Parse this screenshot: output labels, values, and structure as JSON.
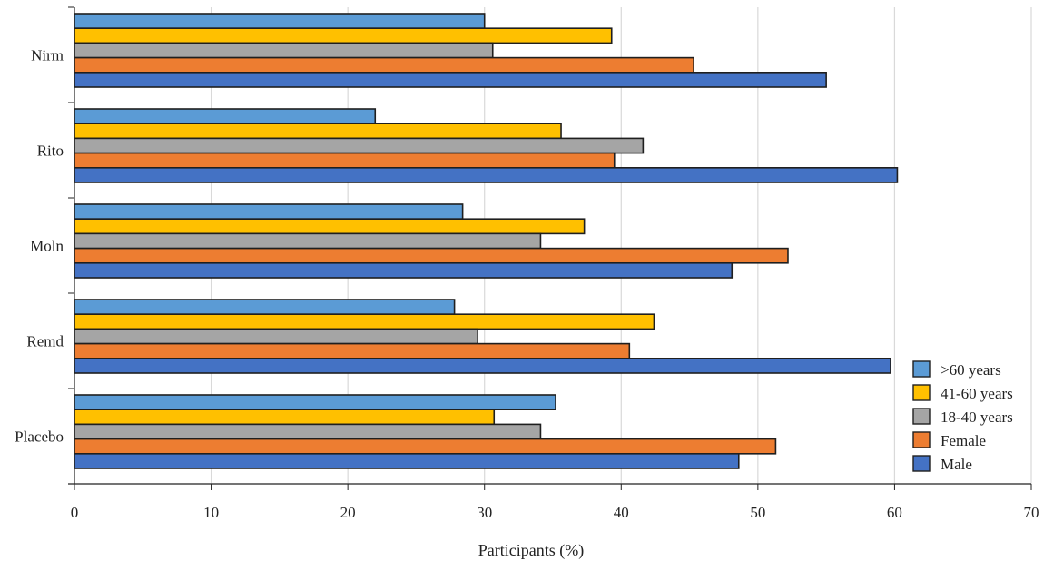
{
  "chart_data": {
    "type": "bar",
    "orientation": "horizontal",
    "categories": [
      "Nirm",
      "Rito",
      "Moln",
      "Remd",
      "Placebo"
    ],
    "series": [
      {
        "name": ">60 years",
        "color": "#5B9BD5",
        "values": [
          30.0,
          22.0,
          28.4,
          27.8,
          35.2
        ]
      },
      {
        "name": "41-60 years",
        "color": "#FFC000",
        "values": [
          39.3,
          35.6,
          37.3,
          42.4,
          30.7
        ]
      },
      {
        "name": "18-40 years",
        "color": "#A5A5A5",
        "values": [
          30.6,
          41.6,
          34.1,
          29.5,
          34.1
        ]
      },
      {
        "name": "Female",
        "color": "#ED7D31",
        "values": [
          45.3,
          39.5,
          52.2,
          40.6,
          51.3
        ]
      },
      {
        "name": "Male",
        "color": "#4472C4",
        "values": [
          55.0,
          60.2,
          48.1,
          59.7,
          48.6
        ]
      }
    ],
    "xlabel": "Participants (%)",
    "ylabel": "",
    "xlim": [
      0,
      70
    ],
    "xticks": [
      "0",
      "10",
      "20",
      "30",
      "40",
      "50",
      "60",
      "70"
    ],
    "grid": "vertical",
    "legend": "bottom-right"
  }
}
